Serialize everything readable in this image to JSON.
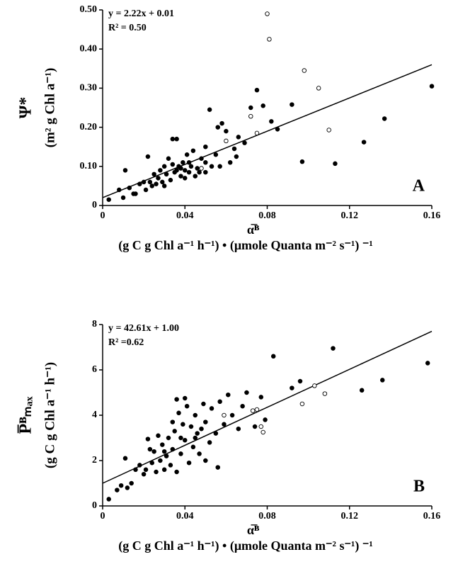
{
  "chart_data": [
    {
      "type": "scatter",
      "panel_label": "A",
      "equation": "y = 2.22x + 0.01",
      "r_squared": "R² = 0.50",
      "xlabel": "α̅ᴮ",
      "xlabel_units": "(g C g Chl a⁻¹ h⁻¹) • (μmole Quanta m⁻² s⁻¹) ⁻¹",
      "ylabel": "Ψ*",
      "ylabel_units": "(m² g Chl a⁻¹)",
      "xlim": [
        0,
        0.16
      ],
      "ylim": [
        0,
        0.5
      ],
      "xticks": [
        {
          "value": 0,
          "label": "0"
        },
        0.04,
        0.08,
        0.12,
        0.16
      ],
      "yticks": [
        {
          "value": 0,
          "label": "0"
        },
        {
          "value": 0.1,
          "label": "0.10"
        },
        {
          "value": 0.2,
          "label": "0.20"
        },
        {
          "value": 0.3,
          "label": "0.30"
        },
        {
          "value": 0.4,
          "label": "0.40"
        },
        {
          "value": 0.5,
          "label": "0.50"
        }
      ],
      "fit_line": {
        "x": [
          0,
          0.16
        ],
        "values": [
          0.02,
          0.36
        ],
        "color": "#000000"
      },
      "series": [
        {
          "marker": "filled",
          "color": "#000000",
          "x": [
            0.16,
            0.137,
            0.127,
            0.113,
            0.097,
            0.092,
            0.085,
            0.082,
            0.078,
            0.075,
            0.072,
            0.069,
            0.066,
            0.064,
            0.06,
            0.058,
            0.056,
            0.055,
            0.052,
            0.05,
            0.05,
            0.048,
            0.046,
            0.044,
            0.043,
            0.042,
            0.041,
            0.04,
            0.039,
            0.038,
            0.037,
            0.036,
            0.035,
            0.034,
            0.033,
            0.032,
            0.031,
            0.03,
            0.029,
            0.028,
            0.027,
            0.026,
            0.025,
            0.024,
            0.023,
            0.022,
            0.021,
            0.02,
            0.018,
            0.016,
            0.015,
            0.013,
            0.011,
            0.01,
            0.008,
            0.003,
            0.045,
            0.047,
            0.038,
            0.036,
            0.04,
            0.042,
            0.034,
            0.03,
            0.05,
            0.053,
            0.057,
            0.062,
            0.065
          ],
          "values": [
            0.305,
            0.222,
            0.162,
            0.107,
            0.112,
            0.258,
            0.195,
            0.215,
            0.255,
            0.295,
            0.25,
            0.16,
            0.175,
            0.145,
            0.19,
            0.21,
            0.2,
            0.13,
            0.245,
            0.15,
            0.11,
            0.12,
            0.095,
            0.14,
            0.1,
            0.085,
            0.13,
            0.09,
            0.11,
            0.075,
            0.1,
            0.17,
            0.085,
            0.17,
            0.065,
            0.12,
            0.08,
            0.1,
            0.06,
            0.09,
            0.07,
            0.055,
            0.08,
            0.05,
            0.06,
            0.125,
            0.04,
            0.06,
            0.055,
            0.03,
            0.03,
            0.045,
            0.09,
            0.02,
            0.04,
            0.015,
            0.075,
            0.085,
            0.095,
            0.09,
            0.07,
            0.11,
            0.105,
            0.05,
            0.085,
            0.1,
            0.1,
            0.11,
            0.125
          ]
        },
        {
          "marker": "open",
          "color": "#000000",
          "x": [
            0.08,
            0.081,
            0.098,
            0.105,
            0.11,
            0.072,
            0.075,
            0.06,
            0.048
          ],
          "values": [
            0.49,
            0.425,
            0.345,
            0.3,
            0.193,
            0.228,
            0.185,
            0.165,
            0.095
          ]
        }
      ]
    },
    {
      "type": "scatter",
      "panel_label": "B",
      "equation": "y = 42.61x + 1.00",
      "r_squared": "R² =0.62",
      "xlabel": "α̅ᴮ",
      "xlabel_units": "(g C g Chl a⁻¹ h⁻¹) • (μmole Quanta m⁻² s⁻¹) ⁻¹",
      "ylabel": "P̅ᴮₘₐₓ",
      "ylabel_units": "(g C g Chl a⁻¹ h⁻¹)",
      "xlim": [
        0,
        0.16
      ],
      "ylim": [
        0,
        8
      ],
      "xticks": [
        {
          "value": 0,
          "label": "0"
        },
        0.04,
        0.08,
        0.12,
        0.16
      ],
      "yticks": [
        0,
        2,
        4,
        6,
        8
      ],
      "fit_line": {
        "x": [
          0,
          0.16
        ],
        "values": [
          1.0,
          7.7
        ],
        "color": "#000000"
      },
      "series": [
        {
          "marker": "filled",
          "color": "#000000",
          "x": [
            0.158,
            0.136,
            0.126,
            0.112,
            0.096,
            0.092,
            0.083,
            0.079,
            0.077,
            0.074,
            0.07,
            0.068,
            0.066,
            0.063,
            0.061,
            0.059,
            0.057,
            0.056,
            0.055,
            0.053,
            0.052,
            0.05,
            0.049,
            0.047,
            0.046,
            0.045,
            0.044,
            0.043,
            0.042,
            0.041,
            0.04,
            0.039,
            0.038,
            0.037,
            0.036,
            0.035,
            0.034,
            0.033,
            0.032,
            0.031,
            0.03,
            0.029,
            0.028,
            0.027,
            0.026,
            0.025,
            0.024,
            0.023,
            0.022,
            0.021,
            0.02,
            0.018,
            0.016,
            0.014,
            0.012,
            0.011,
            0.009,
            0.007,
            0.003,
            0.036,
            0.04,
            0.045,
            0.048,
            0.05,
            0.038,
            0.034,
            0.03
          ],
          "values": [
            6.3,
            5.55,
            5.1,
            6.95,
            5.5,
            5.2,
            6.6,
            3.8,
            4.8,
            3.5,
            5.0,
            4.4,
            3.4,
            4.0,
            4.9,
            3.6,
            4.6,
            1.7,
            3.2,
            4.3,
            2.8,
            3.7,
            4.5,
            2.3,
            3.2,
            4.0,
            2.6,
            3.5,
            1.9,
            4.4,
            2.9,
            3.6,
            2.3,
            4.1,
            1.5,
            3.3,
            2.5,
            1.8,
            3.0,
            2.2,
            1.6,
            2.7,
            2.0,
            3.1,
            1.5,
            2.4,
            1.9,
            2.5,
            2.95,
            1.6,
            1.4,
            1.8,
            1.6,
            1.0,
            0.8,
            2.1,
            0.9,
            0.7,
            0.3,
            4.7,
            4.75,
            3.0,
            3.4,
            2.0,
            3.0,
            3.7,
            2.4
          ]
        },
        {
          "marker": "open",
          "color": "#000000",
          "x": [
            0.059,
            0.073,
            0.075,
            0.077,
            0.078,
            0.097,
            0.103,
            0.108
          ],
          "values": [
            4.0,
            4.2,
            4.25,
            3.5,
            3.25,
            4.5,
            5.3,
            4.95
          ]
        }
      ]
    }
  ]
}
